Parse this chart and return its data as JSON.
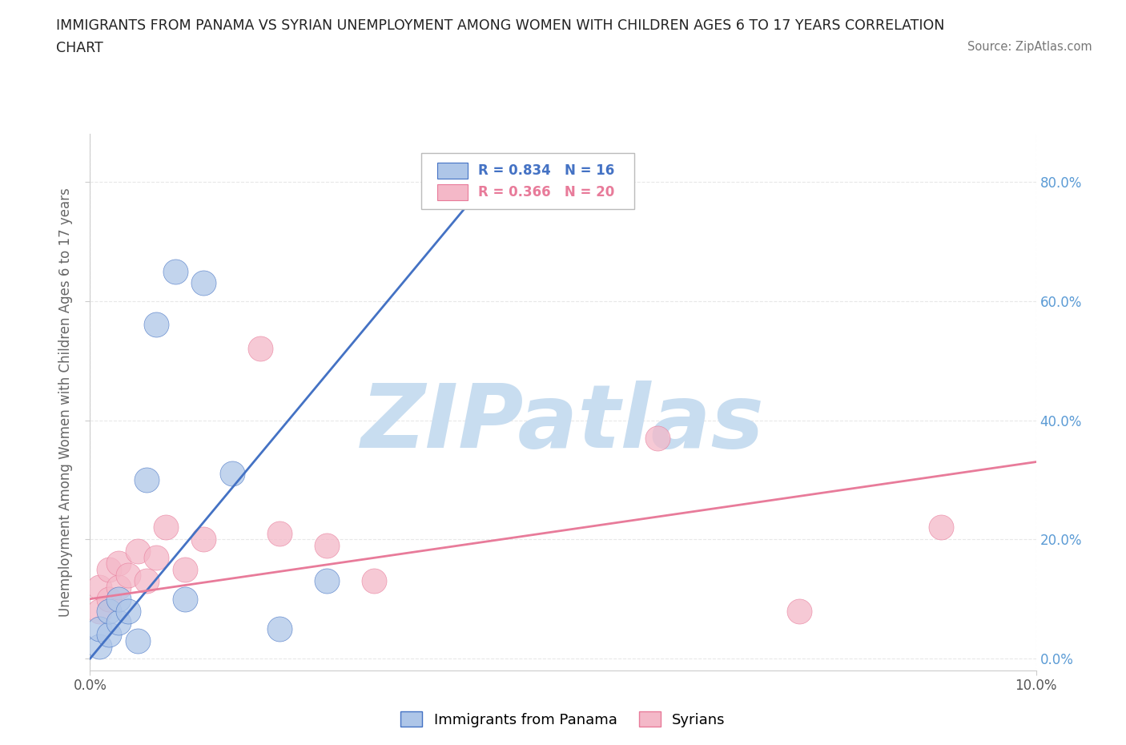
{
  "title_line1": "IMMIGRANTS FROM PANAMA VS SYRIAN UNEMPLOYMENT AMONG WOMEN WITH CHILDREN AGES 6 TO 17 YEARS CORRELATION",
  "title_line2": "CHART",
  "source": "Source: ZipAtlas.com",
  "ylabel_label": "Unemployment Among Women with Children Ages 6 to 17 years",
  "xlim": [
    0.0,
    0.1
  ],
  "ylim": [
    -0.02,
    0.88
  ],
  "yticks": [
    0.0,
    0.2,
    0.4,
    0.6,
    0.8
  ],
  "ytick_labels": [
    "0.0%",
    "20.0%",
    "40.0%",
    "60.0%",
    "80.0%"
  ],
  "xticks": [
    0.0,
    0.1
  ],
  "xtick_labels": [
    "0.0%",
    "10.0%"
  ],
  "panama_R": 0.834,
  "panama_N": 16,
  "syrian_R": 0.366,
  "syrian_N": 20,
  "panama_color": "#aec6e8",
  "panama_line_color": "#4472c4",
  "syrian_color": "#f4b8c8",
  "syrian_line_color": "#e87b9a",
  "panama_scatter_x": [
    0.001,
    0.001,
    0.002,
    0.002,
    0.003,
    0.003,
    0.004,
    0.005,
    0.006,
    0.007,
    0.009,
    0.01,
    0.012,
    0.015,
    0.02,
    0.025
  ],
  "panama_scatter_y": [
    0.02,
    0.05,
    0.04,
    0.08,
    0.06,
    0.1,
    0.08,
    0.03,
    0.3,
    0.56,
    0.65,
    0.1,
    0.63,
    0.31,
    0.05,
    0.13
  ],
  "syrian_scatter_x": [
    0.001,
    0.001,
    0.002,
    0.002,
    0.003,
    0.003,
    0.004,
    0.005,
    0.006,
    0.007,
    0.008,
    0.01,
    0.012,
    0.018,
    0.02,
    0.025,
    0.03,
    0.06,
    0.075,
    0.09
  ],
  "syrian_scatter_y": [
    0.08,
    0.12,
    0.1,
    0.15,
    0.12,
    0.16,
    0.14,
    0.18,
    0.13,
    0.17,
    0.22,
    0.15,
    0.2,
    0.52,
    0.21,
    0.19,
    0.13,
    0.37,
    0.08,
    0.22
  ],
  "panama_line_x": [
    0.0,
    0.043
  ],
  "panama_line_y": [
    0.0,
    0.82
  ],
  "syrian_line_x": [
    0.0,
    0.1
  ],
  "syrian_line_y": [
    0.1,
    0.33
  ],
  "watermark_text": "ZIPatlas",
  "watermark_color": "#c8ddf0",
  "background_color": "#ffffff",
  "grid_color": "#e8e8e8",
  "legend_panama_label": "Immigrants from Panama",
  "legend_syrian_label": "Syrians",
  "right_ytick_color": "#5b9bd5",
  "title_color": "#222222",
  "axis_label_color": "#666666"
}
